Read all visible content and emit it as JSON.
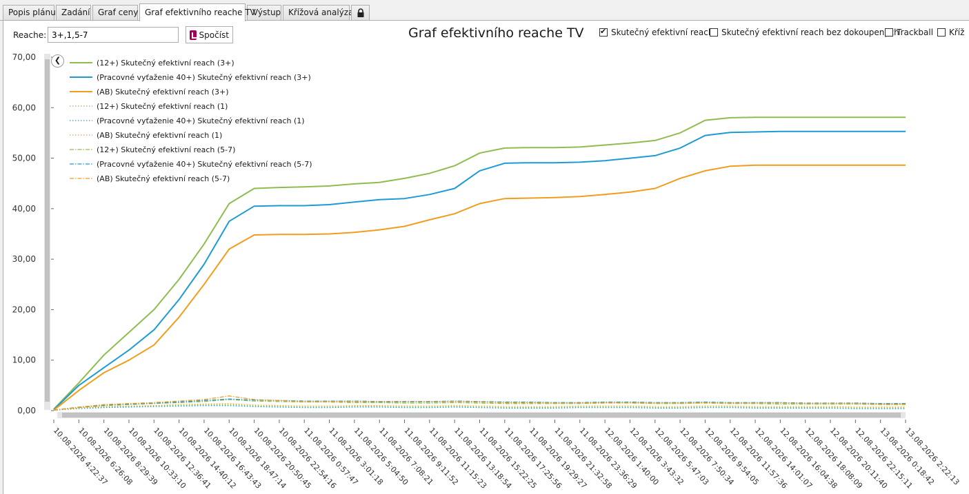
{
  "tabs": [
    {
      "label": "Popis plánu",
      "active": false
    },
    {
      "label": "Zadání",
      "active": false
    },
    {
      "label": "Graf ceny",
      "active": false
    },
    {
      "label": "Graf efektivního reache TV",
      "active": true
    },
    {
      "label": "Výstup",
      "active": false
    },
    {
      "label": "Křížová analýza",
      "active": false
    }
  ],
  "lock_icon": "lock-icon",
  "toolbar": {
    "reache_label": "Reache:",
    "reache_value": "3+,1,5-7",
    "compute_label": "Spočíst"
  },
  "checkboxes": [
    {
      "label": "Skutečný efektivní reach",
      "checked": true
    },
    {
      "label": "Skutečný efektivní reach bez dokoupených",
      "checked": false
    },
    {
      "label": "Trackball",
      "checked": false
    },
    {
      "label": "Kříž",
      "checked": false
    }
  ],
  "colors": {
    "green": "#8fbc4f",
    "blue": "#1c9ad6",
    "orange": "#f39c1c"
  },
  "chart_data": {
    "type": "line",
    "title": "Graf efektivního reache TV",
    "ylim": [
      0,
      70
    ],
    "yticks": [
      "0,00",
      "10,00",
      "20,00",
      "30,00",
      "40,00",
      "50,00",
      "60,00",
      "70,00"
    ],
    "xticks": [
      "10.08.2026 4:22:37",
      "10.08.2026 6:26:08",
      "10.08.2026 8:29:39",
      "10.08.2026 10:33:10",
      "10.08.2026 12:36:41",
      "10.08.2026 14:40:12",
      "10.08.2026 16:43:43",
      "10.08.2026 18:47:14",
      "10.08.2026 20:50:45",
      "10.08.2026 22:54:16",
      "11.08.2026 0:57:47",
      "11.08.2026 3:01:18",
      "11.08.2026 5:04:50",
      "11.08.2026 7:08:21",
      "11.08.2026 9:11:52",
      "11.08.2026 11:15:23",
      "11.08.2026 13:18:54",
      "11.08.2026 15:22:25",
      "11.08.2026 17:25:56",
      "11.08.2026 19:29:27",
      "11.08.2026 21:32:58",
      "11.08.2026 23:36:29",
      "12.08.2026 1:40:00",
      "12.08.2026 3:43:32",
      "12.08.2026 5:47:03",
      "12.08.2026 7:50:34",
      "12.08.2026 9:54:05",
      "12.08.2026 11:57:36",
      "12.08.2026 14:01:07",
      "12.08.2026 16:04:38",
      "12.08.2026 18:08:09",
      "12.08.2026 20:11:40",
      "12.08.2026 22:15:11",
      "13.08.2026 0:18:42",
      "13.08.2026 2:22:13"
    ],
    "x_index": [
      0,
      1,
      2,
      3,
      4,
      5,
      6,
      7,
      8,
      9,
      10,
      11,
      12,
      13,
      14,
      15,
      16,
      17,
      18,
      19,
      20,
      21,
      22,
      23,
      24,
      25,
      26,
      27,
      28,
      29,
      30,
      31,
      32,
      33,
      34
    ],
    "series": [
      {
        "name": "(12+) Skutečný efektivní reach (3+)",
        "color": "#8fbc4f",
        "dash": "solid",
        "values": [
          0.3,
          5.5,
          11,
          15.5,
          20,
          26,
          33,
          41,
          44,
          44.2,
          44.3,
          44.5,
          44.9,
          45.2,
          46,
          47,
          48.5,
          51,
          52,
          52.1,
          52.1,
          52.2,
          52.6,
          53,
          53.5,
          55,
          57.5,
          58,
          58.1,
          58.1,
          58.1,
          58.1,
          58.1,
          58.1,
          58.1
        ]
      },
      {
        "name": "(Pracovné vyťaženie 40+) Skutečný efektivní reach (3+)",
        "color": "#1c9ad6",
        "dash": "solid",
        "values": [
          0.2,
          5,
          8.5,
          12,
          16,
          22,
          29,
          37.5,
          40.5,
          40.6,
          40.6,
          40.8,
          41.3,
          41.8,
          42,
          42.8,
          44,
          47.5,
          49,
          49.1,
          49.1,
          49.2,
          49.5,
          50,
          50.5,
          52,
          54.5,
          55.1,
          55.2,
          55.3,
          55.3,
          55.3,
          55.3,
          55.3,
          55.3
        ]
      },
      {
        "name": "(AB) Skutečný efektivní reach (3+)",
        "color": "#f39c1c",
        "dash": "solid",
        "values": [
          0.1,
          4,
          7.5,
          10,
          13,
          18.5,
          25,
          32,
          34.8,
          34.9,
          34.9,
          35,
          35.3,
          35.8,
          36.5,
          37.8,
          39,
          41,
          42,
          42.1,
          42.2,
          42.4,
          42.8,
          43.3,
          44,
          46,
          47.5,
          48.4,
          48.6,
          48.6,
          48.6,
          48.6,
          48.6,
          48.6,
          48.6
        ]
      },
      {
        "name": "(12+) Skutečný efektivní reach (1)",
        "color": "#8fbc4f",
        "dash": "dot",
        "values": [
          0.1,
          0.5,
          0.7,
          0.8,
          0.9,
          1,
          1.1,
          1.2,
          0.9,
          0.8,
          0.7,
          0.7,
          0.8,
          0.8,
          0.7,
          0.7,
          0.8,
          0.7,
          0.6,
          0.6,
          0.6,
          0.7,
          0.7,
          0.7,
          0.6,
          0.6,
          0.7,
          0.7,
          0.6,
          0.6,
          0.6,
          0.6,
          0.5,
          0.5,
          0.5
        ]
      },
      {
        "name": "(Pracovné vyťaženie 40+) Skutečný efektivní reach (1)",
        "color": "#1c9ad6",
        "dash": "dot",
        "values": [
          0.1,
          0.4,
          0.6,
          0.7,
          0.8,
          0.9,
          1,
          1,
          0.8,
          0.7,
          0.6,
          0.6,
          0.7,
          0.7,
          0.6,
          0.6,
          0.7,
          0.6,
          0.5,
          0.5,
          0.5,
          0.6,
          0.6,
          0.6,
          0.5,
          0.5,
          0.6,
          0.6,
          0.5,
          0.5,
          0.5,
          0.5,
          0.4,
          0.4,
          0.4
        ]
      },
      {
        "name": "(AB) Skutečný efektivní reach (1)",
        "color": "#f39c1c",
        "dash": "dot",
        "values": [
          0.1,
          0.5,
          0.8,
          0.9,
          1,
          1.2,
          1.3,
          1.4,
          1.1,
          1,
          0.9,
          0.9,
          1,
          1,
          0.9,
          0.9,
          1,
          0.9,
          0.8,
          0.8,
          0.8,
          0.9,
          0.9,
          0.9,
          0.8,
          0.8,
          0.9,
          0.9,
          0.8,
          0.8,
          0.8,
          0.8,
          0.7,
          0.7,
          0.7
        ]
      },
      {
        "name": "(12+) Skutečný efektivní reach (5-7)",
        "color": "#8fbc4f",
        "dash": "dashdot",
        "values": [
          0.1,
          0.6,
          1,
          1.2,
          1.4,
          1.6,
          1.8,
          2.2,
          1.9,
          1.8,
          1.7,
          1.7,
          1.6,
          1.6,
          1.5,
          1.5,
          1.6,
          1.5,
          1.4,
          1.4,
          1.4,
          1.4,
          1.5,
          1.5,
          1.4,
          1.4,
          1.5,
          1.4,
          1.4,
          1.3,
          1.3,
          1.3,
          1.3,
          1.2,
          1.2
        ]
      },
      {
        "name": "(Pracovné vyťaženie 40+) Skutečný efektivní reach (5-7)",
        "color": "#1c9ad6",
        "dash": "dashdot",
        "values": [
          0.1,
          0.7,
          1.1,
          1.3,
          1.5,
          1.7,
          2,
          2.3,
          2.1,
          2,
          1.9,
          1.9,
          1.9,
          1.8,
          1.8,
          1.8,
          1.9,
          1.8,
          1.7,
          1.7,
          1.6,
          1.6,
          1.7,
          1.7,
          1.6,
          1.6,
          1.7,
          1.6,
          1.6,
          1.6,
          1.5,
          1.5,
          1.5,
          1.4,
          1.4
        ]
      },
      {
        "name": "(AB) Skutečný efektivní reach (5-7)",
        "color": "#f39c1c",
        "dash": "dashdot",
        "values": [
          0.1,
          0.7,
          1.2,
          1.4,
          1.6,
          1.9,
          2.2,
          2.9,
          2.2,
          2,
          1.8,
          1.8,
          1.8,
          1.7,
          1.7,
          1.7,
          1.8,
          1.7,
          1.6,
          1.6,
          1.5,
          1.5,
          1.6,
          1.6,
          1.5,
          1.5,
          1.6,
          1.5,
          1.5,
          1.5,
          1.4,
          1.4,
          1.4,
          1.3,
          1.3
        ]
      }
    ]
  }
}
